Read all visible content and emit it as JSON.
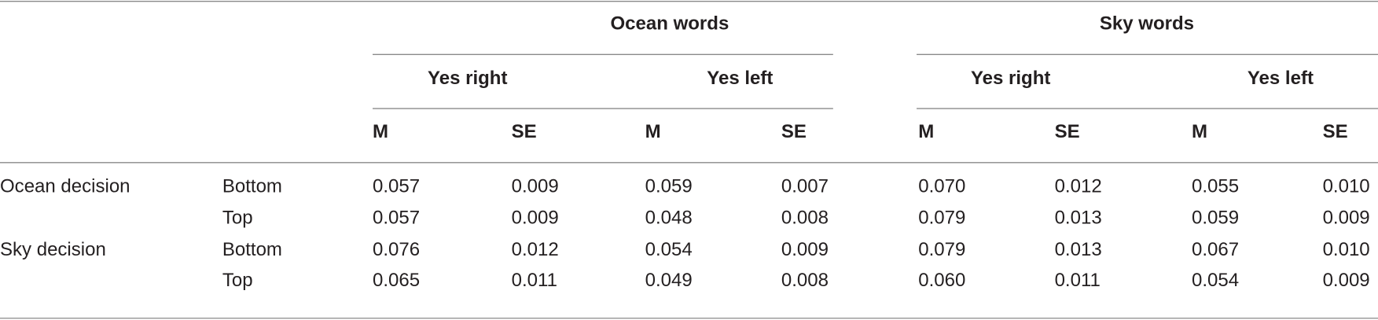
{
  "table": {
    "groups": [
      "Ocean words",
      "Sky words"
    ],
    "subgroups": [
      "Yes right",
      "Yes left",
      "Yes right",
      "Yes left"
    ],
    "columns": [
      "M",
      "SE",
      "M",
      "SE",
      "M",
      "SE",
      "M",
      "SE"
    ],
    "rows": [
      {
        "group": "Ocean decision",
        "position": "Bottom",
        "cells": [
          "0.057",
          "0.009",
          "0.059",
          "0.007",
          "0.070",
          "0.012",
          "0.055",
          "0.010"
        ]
      },
      {
        "position": "Top",
        "cells": [
          "0.057",
          "0.009",
          "0.048",
          "0.008",
          "0.079",
          "0.013",
          "0.059",
          "0.009"
        ]
      },
      {
        "group": "Sky decision",
        "position": "Bottom",
        "cells": [
          "0.076",
          "0.012",
          "0.054",
          "0.009",
          "0.079",
          "0.013",
          "0.067",
          "0.010"
        ]
      },
      {
        "position": "Top",
        "cells": [
          "0.065",
          "0.011",
          "0.049",
          "0.008",
          "0.060",
          "0.011",
          "0.054",
          "0.009"
        ]
      }
    ]
  }
}
